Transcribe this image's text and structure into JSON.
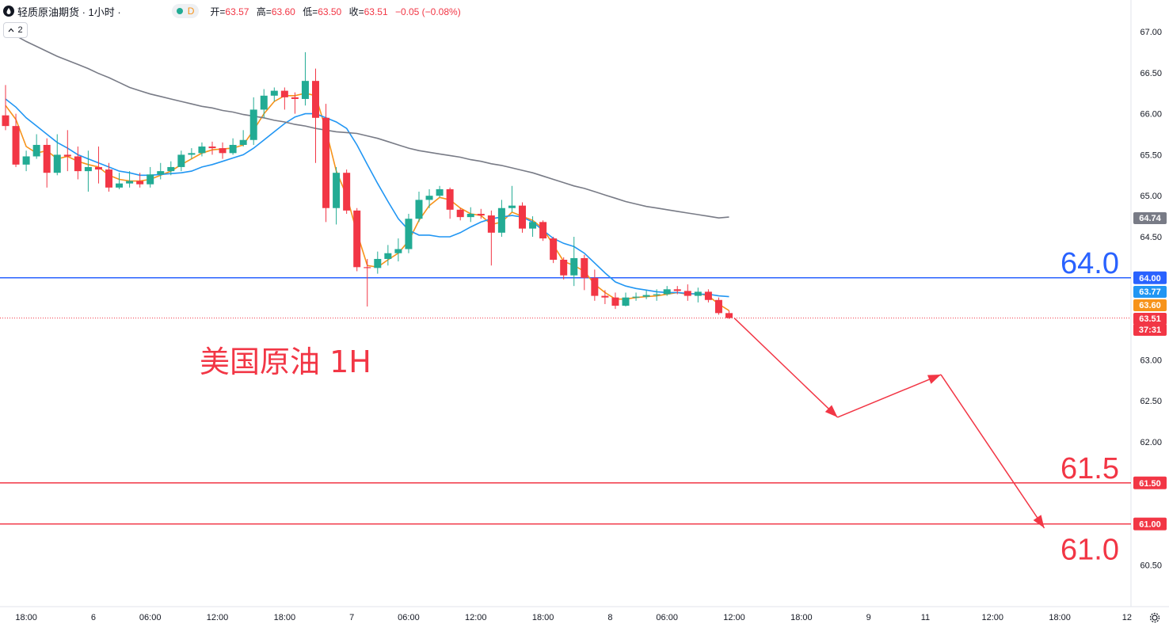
{
  "header": {
    "symbol": "轻质原油期货 · 1小时 ·",
    "badge": "D",
    "ohlc_open_label": "开=",
    "ohlc_open": "63.57",
    "ohlc_high_label": "高=",
    "ohlc_high": "63.60",
    "ohlc_low_label": "低=",
    "ohlc_low": "63.50",
    "ohlc_close_label": "收=",
    "ohlc_close": "63.51",
    "ohlc_change": "−0.05 (−0.08%)"
  },
  "indicator_toggle": {
    "label": "2",
    "icon": "chevron-up-icon"
  },
  "colors": {
    "up": "#22ab94",
    "down": "#f23645",
    "ma_fast": "#f7931a",
    "ma_mid": "#2196f3",
    "ma_slow": "#787b86",
    "line_blue": "#2962ff",
    "line_red": "#f23645"
  },
  "chart_data": {
    "type": "candlestick",
    "interval": "1H",
    "ylim": [
      60.3,
      67.2
    ],
    "y_ticks": [
      "67.00",
      "66.50",
      "66.00",
      "65.50",
      "65.00",
      "64.50",
      "63.00",
      "62.50",
      "62.00",
      "60.50"
    ],
    "x_ticks": [
      "18:00",
      "6",
      "06:00",
      "12:00",
      "18:00",
      "7",
      "06:00",
      "12:00",
      "18:00",
      "8",
      "06:00",
      "12:00",
      "18:00",
      "9",
      "11",
      "12:00",
      "18:00",
      "12"
    ],
    "candles": [
      [
        65.98,
        65.85,
        66.35,
        65.8
      ],
      [
        65.85,
        65.38,
        66.0,
        65.35
      ],
      [
        65.38,
        65.48,
        65.55,
        65.3
      ],
      [
        65.48,
        65.62,
        65.75,
        65.45
      ],
      [
        65.62,
        65.28,
        65.7,
        65.1
      ],
      [
        65.28,
        65.5,
        65.75,
        65.25
      ],
      [
        65.5,
        65.48,
        65.8,
        65.3
      ],
      [
        65.48,
        65.3,
        65.6,
        65.2
      ],
      [
        65.3,
        65.35,
        65.55,
        65.05
      ],
      [
        65.35,
        65.32,
        65.6,
        65.15
      ],
      [
        65.32,
        65.1,
        65.4,
        65.05
      ],
      [
        65.1,
        65.15,
        65.28,
        65.08
      ],
      [
        65.15,
        65.18,
        65.3,
        65.1
      ],
      [
        65.18,
        65.14,
        65.28,
        65.1
      ],
      [
        65.14,
        65.26,
        65.35,
        65.1
      ],
      [
        65.26,
        65.3,
        65.4,
        65.2
      ],
      [
        65.3,
        65.35,
        65.42,
        65.25
      ],
      [
        65.35,
        65.5,
        65.55,
        65.3
      ],
      [
        65.5,
        65.52,
        65.58,
        65.45
      ],
      [
        65.52,
        65.6,
        65.65,
        65.48
      ],
      [
        65.6,
        65.58,
        65.66,
        65.5
      ],
      [
        65.58,
        65.52,
        65.65,
        65.45
      ],
      [
        65.52,
        65.62,
        65.7,
        65.5
      ],
      [
        65.62,
        65.68,
        65.8,
        65.6
      ],
      [
        65.68,
        66.05,
        66.2,
        65.62
      ],
      [
        66.05,
        66.22,
        66.3,
        65.95
      ],
      [
        66.22,
        66.28,
        66.32,
        66.15
      ],
      [
        66.28,
        66.2,
        66.32,
        66.05
      ],
      [
        66.2,
        66.18,
        66.26,
        66.0
      ],
      [
        66.18,
        66.4,
        66.75,
        66.1
      ],
      [
        66.4,
        65.95,
        66.55,
        65.4
      ],
      [
        65.95,
        64.85,
        66.12,
        64.68
      ],
      [
        64.85,
        65.28,
        65.35,
        64.65
      ],
      [
        65.28,
        64.82,
        65.32,
        64.78
      ],
      [
        64.82,
        64.13,
        64.85,
        64.08
      ],
      [
        64.13,
        64.12,
        64.23,
        63.65
      ],
      [
        64.12,
        64.23,
        64.32,
        64.05
      ],
      [
        64.23,
        64.3,
        64.4,
        64.15
      ],
      [
        64.3,
        64.35,
        64.48,
        64.2
      ],
      [
        64.35,
        64.72,
        64.78,
        64.3
      ],
      [
        64.72,
        64.95,
        65.05,
        64.68
      ],
      [
        64.95,
        65.0,
        65.08,
        64.85
      ],
      [
        65.0,
        65.08,
        65.12,
        64.98
      ],
      [
        65.08,
        64.83,
        65.1,
        64.72
      ],
      [
        64.83,
        64.74,
        64.85,
        64.7
      ],
      [
        64.74,
        64.78,
        64.86,
        64.68
      ],
      [
        64.78,
        64.76,
        64.84,
        64.72
      ],
      [
        64.76,
        64.55,
        64.82,
        64.15
      ],
      [
        64.55,
        64.85,
        64.95,
        64.5
      ],
      [
        64.85,
        64.88,
        65.12,
        64.8
      ],
      [
        64.88,
        64.6,
        64.92,
        64.55
      ],
      [
        64.6,
        64.68,
        64.75,
        64.5
      ],
      [
        64.68,
        64.48,
        64.7,
        64.45
      ],
      [
        64.48,
        64.22,
        64.5,
        64.18
      ],
      [
        64.22,
        64.03,
        64.25,
        63.98
      ],
      [
        64.03,
        64.24,
        64.5,
        63.9
      ],
      [
        64.24,
        64.0,
        64.28,
        63.85
      ],
      [
        64.0,
        63.78,
        64.1,
        63.72
      ],
      [
        63.78,
        63.76,
        63.85,
        63.68
      ],
      [
        63.76,
        63.66,
        63.82,
        63.62
      ],
      [
        63.66,
        63.76,
        63.82,
        63.65
      ],
      [
        63.76,
        63.77,
        63.82,
        63.72
      ],
      [
        63.77,
        63.79,
        63.85,
        63.74
      ],
      [
        63.79,
        63.8,
        63.86,
        63.72
      ],
      [
        63.8,
        63.86,
        63.9,
        63.78
      ],
      [
        63.86,
        63.84,
        63.9,
        63.8
      ],
      [
        63.84,
        63.78,
        63.92,
        63.72
      ],
      [
        63.78,
        63.83,
        63.88,
        63.7
      ],
      [
        63.83,
        63.73,
        63.86,
        63.7
      ],
      [
        63.73,
        63.57,
        63.76,
        63.55
      ],
      [
        63.57,
        63.51,
        63.6,
        63.5
      ]
    ],
    "series": [
      {
        "name": "",
        "color": "#f7931a",
        "values": [
          66.1,
          65.93,
          65.6,
          65.52,
          65.55,
          65.45,
          65.48,
          65.42,
          65.38,
          65.35,
          65.25,
          65.2,
          65.18,
          65.18,
          65.2,
          65.25,
          65.3,
          65.38,
          65.45,
          65.52,
          65.56,
          65.57,
          65.58,
          65.62,
          65.8,
          66.0,
          66.15,
          66.22,
          66.22,
          66.25,
          66.22,
          65.8,
          65.3,
          65.0,
          64.55,
          64.15,
          64.13,
          64.22,
          64.3,
          64.45,
          64.7,
          64.88,
          64.98,
          64.95,
          64.85,
          64.78,
          64.76,
          64.65,
          64.68,
          64.8,
          64.75,
          64.7,
          64.6,
          64.4,
          64.2,
          64.15,
          64.08,
          63.92,
          63.82,
          63.74,
          63.74,
          63.76,
          63.77,
          63.78,
          63.8,
          63.82,
          63.8,
          63.81,
          63.78,
          63.68,
          63.6
        ]
      },
      {
        "name": "",
        "color": "#2196f3",
        "values": [
          66.18,
          66.08,
          65.95,
          65.85,
          65.75,
          65.65,
          65.58,
          65.5,
          65.45,
          65.4,
          65.35,
          65.3,
          65.28,
          65.25,
          65.25,
          65.26,
          65.27,
          65.28,
          65.3,
          65.35,
          65.38,
          65.42,
          65.46,
          65.5,
          65.58,
          65.68,
          65.78,
          65.88,
          65.96,
          66.0,
          66.0,
          65.95,
          65.9,
          65.82,
          65.62,
          65.38,
          65.15,
          64.93,
          64.72,
          64.58,
          64.52,
          64.52,
          64.5,
          64.5,
          64.55,
          64.62,
          64.68,
          64.72,
          64.74,
          64.76,
          64.74,
          64.68,
          64.58,
          64.48,
          64.42,
          64.38,
          64.3,
          64.18,
          64.06,
          63.95,
          63.9,
          63.87,
          63.85,
          63.83,
          63.82,
          63.82,
          63.81,
          63.8,
          63.8,
          63.78,
          63.77
        ]
      },
      {
        "name": "",
        "color": "#787b86",
        "values": [
          67.02,
          66.95,
          66.88,
          66.82,
          66.76,
          66.7,
          66.65,
          66.6,
          66.55,
          66.49,
          66.44,
          66.38,
          66.32,
          66.28,
          66.24,
          66.21,
          66.18,
          66.15,
          66.12,
          66.09,
          66.07,
          66.04,
          66.02,
          65.99,
          65.97,
          65.95,
          65.92,
          65.9,
          65.87,
          65.85,
          65.82,
          65.8,
          65.78,
          65.77,
          65.76,
          65.73,
          65.7,
          65.66,
          65.62,
          65.58,
          65.55,
          65.53,
          65.51,
          65.49,
          65.47,
          65.44,
          65.42,
          65.39,
          65.37,
          65.34,
          65.31,
          65.28,
          65.24,
          65.2,
          65.16,
          65.12,
          65.09,
          65.05,
          65.01,
          64.97,
          64.93,
          64.9,
          64.87,
          64.85,
          64.83,
          64.81,
          64.79,
          64.77,
          64.75,
          64.73,
          64.74
        ]
      }
    ],
    "horizontal_lines": [
      {
        "value": 64.0,
        "label": "64.0",
        "axis_label": "64.00",
        "color": "#2962ff"
      },
      {
        "value": 61.5,
        "label": "61.5",
        "axis_label": "61.50",
        "color": "#f23645"
      },
      {
        "value": 61.0,
        "label": "61.0",
        "axis_label": "61.00",
        "color": "#f23645"
      }
    ],
    "price_tags": [
      {
        "text": "64.74",
        "value": 64.74,
        "bg": "#787b86"
      },
      {
        "text": "63.77",
        "value": 63.77,
        "bg": "#2196f3"
      },
      {
        "text": "63.60",
        "value": 63.6,
        "bg": "#f7931a"
      },
      {
        "text": "63.51",
        "value": 63.51,
        "bg": "#f23645"
      },
      {
        "text": "37:31",
        "value": 63.51,
        "bg": "#f23645"
      }
    ],
    "last_price": 63.51,
    "annotation": "美国原油 1H",
    "projection_path": [
      [
        70.5,
        63.51
      ],
      [
        80.5,
        62.3
      ],
      [
        90.5,
        62.82
      ],
      [
        100.5,
        60.95
      ]
    ]
  }
}
